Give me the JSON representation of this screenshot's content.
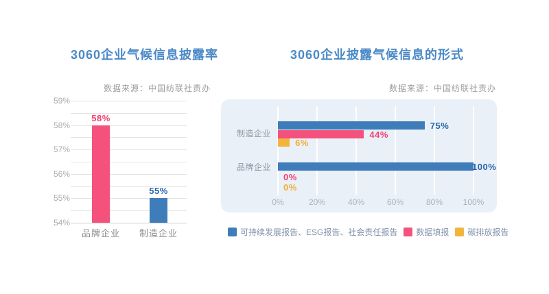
{
  "palette": {
    "title_blue": "#4A89C6",
    "source_gray": "#9C9C9C",
    "panel_bg": "#EAF0F7"
  },
  "chart_data": [
    {
      "type": "bar",
      "title": "3060企业气候信息披露率",
      "source": "数据来源：中国纺联社责办",
      "categories": [
        "品牌企业",
        "制造企业"
      ],
      "values": [
        58,
        55
      ],
      "unit": "%",
      "bar_colors": [
        "#F4517D",
        "#3E7CBA"
      ],
      "value_label_colors": [
        "#F23F70",
        "#2765AB"
      ],
      "ylim": [
        54,
        59
      ],
      "ytick_step": 1,
      "grid_minor_step": 0.5,
      "grid": true,
      "xlabel": "",
      "ylabel": ""
    },
    {
      "type": "bar-horizontal",
      "title": "3060企业披露气候信息的形式",
      "source": "数据来源：中国纺联社责办",
      "categories": [
        "制造企业",
        "品牌企业"
      ],
      "series": [
        {
          "name": "可持续发展报告、ESG报告、社会责任报告",
          "color": "#3E7CBA",
          "label_color": "#2765AB",
          "values": [
            75,
            100
          ]
        },
        {
          "name": "数据填报",
          "color": "#F4517D",
          "label_color": "#F23F70",
          "values": [
            44,
            0
          ]
        },
        {
          "name": "碳排放报告",
          "color": "#F3B43E",
          "label_color": "#F2AC35",
          "values": [
            6,
            0
          ]
        }
      ],
      "unit": "%",
      "xlim": [
        0,
        100
      ],
      "xticks": [
        0,
        20,
        40,
        60,
        80,
        100
      ],
      "grid": true,
      "legend_position": "bottom"
    }
  ]
}
